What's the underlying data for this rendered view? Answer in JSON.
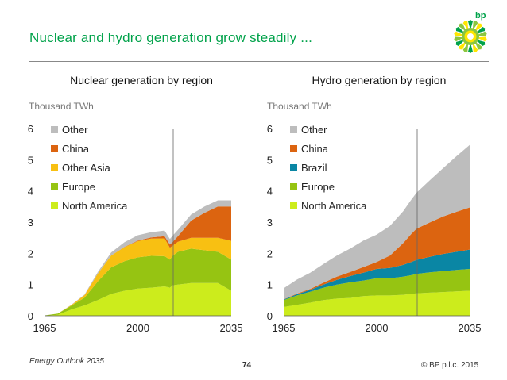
{
  "slide": {
    "title": "Nuclear and hydro generation grow steadily ...",
    "footer_left": "Energy Outlook 2035",
    "page_number": "74",
    "copyright": "© BP p.l.c. 2015",
    "logo_text": "bp"
  },
  "colors": {
    "title": "#00a24a",
    "North America": "#ccec1c",
    "Europe": "#96c412",
    "Other Asia": "#f8c012",
    "Brazil": "#0a86a4",
    "China": "#dc6410",
    "Other": "#bdbdbd"
  },
  "chart_data": [
    {
      "type": "area",
      "stacked": true,
      "title": "Nuclear generation by region",
      "ylabel": "Thousand TWh",
      "xlim": [
        1965,
        2035
      ],
      "ylim": [
        0,
        6
      ],
      "x_ticks": [
        1965,
        2000,
        2035
      ],
      "y_ticks": [
        0,
        1,
        2,
        3,
        4,
        5,
        6
      ],
      "projection_start": 2013,
      "legend_placement": "top-left",
      "legend": [
        "Other",
        "China",
        "Other Asia",
        "Europe",
        "North America"
      ],
      "x": [
        1965,
        1970,
        1975,
        1980,
        1985,
        1990,
        1995,
        2000,
        2005,
        2010,
        2012,
        2013,
        2015,
        2020,
        2025,
        2030,
        2035
      ],
      "series": [
        {
          "name": "North America",
          "values": [
            0.0,
            0.03,
            0.2,
            0.33,
            0.5,
            0.7,
            0.8,
            0.87,
            0.9,
            0.94,
            0.9,
            0.97,
            1.0,
            1.05,
            1.05,
            1.05,
            0.8
          ]
        },
        {
          "name": "Europe",
          "values": [
            0.01,
            0.04,
            0.12,
            0.25,
            0.6,
            0.85,
            0.95,
            1.0,
            1.02,
            0.97,
            0.9,
            0.95,
            1.05,
            1.1,
            1.05,
            1.0,
            1.0
          ]
        },
        {
          "name": "Other Asia",
          "values": [
            0.0,
            0.0,
            0.02,
            0.08,
            0.25,
            0.38,
            0.45,
            0.52,
            0.55,
            0.57,
            0.38,
            0.32,
            0.32,
            0.35,
            0.4,
            0.45,
            0.6
          ]
        },
        {
          "name": "China",
          "values": [
            0.0,
            0.0,
            0.0,
            0.0,
            0.0,
            0.0,
            0.01,
            0.02,
            0.04,
            0.07,
            0.1,
            0.12,
            0.18,
            0.55,
            0.8,
            1.0,
            1.1
          ]
        },
        {
          "name": "Other",
          "values": [
            0.0,
            0.0,
            0.01,
            0.02,
            0.05,
            0.1,
            0.15,
            0.17,
            0.17,
            0.18,
            0.18,
            0.2,
            0.2,
            0.2,
            0.2,
            0.2,
            0.2
          ]
        }
      ]
    },
    {
      "type": "area",
      "stacked": true,
      "title": "Hydro generation by region",
      "ylabel": "Thousand TWh",
      "xlim": [
        1965,
        2035
      ],
      "ylim": [
        0,
        6
      ],
      "x_ticks": [
        1965,
        2000,
        2035
      ],
      "y_ticks": [
        0,
        1,
        2,
        3,
        4,
        5,
        6
      ],
      "projection_start": 2013,
      "legend_placement": "top-left",
      "legend": [
        "Other",
        "China",
        "Brazil",
        "Europe",
        "North America"
      ],
      "x": [
        1965,
        1970,
        1975,
        1980,
        1985,
        1990,
        1995,
        2000,
        2005,
        2010,
        2013,
        2015,
        2020,
        2025,
        2030,
        2035
      ],
      "series": [
        {
          "name": "North America",
          "values": [
            0.28,
            0.35,
            0.42,
            0.5,
            0.55,
            0.57,
            0.63,
            0.65,
            0.65,
            0.67,
            0.7,
            0.72,
            0.74,
            0.76,
            0.78,
            0.8
          ]
        },
        {
          "name": "Europe",
          "values": [
            0.22,
            0.3,
            0.35,
            0.4,
            0.45,
            0.5,
            0.5,
            0.55,
            0.55,
            0.58,
            0.6,
            0.62,
            0.65,
            0.67,
            0.69,
            0.7
          ]
        },
        {
          "name": "Brazil",
          "values": [
            0.02,
            0.04,
            0.06,
            0.1,
            0.15,
            0.2,
            0.25,
            0.3,
            0.33,
            0.38,
            0.42,
            0.45,
            0.5,
            0.55,
            0.58,
            0.62
          ]
        },
        {
          "name": "China",
          "values": [
            0.01,
            0.02,
            0.03,
            0.06,
            0.1,
            0.13,
            0.18,
            0.22,
            0.4,
            0.7,
            0.9,
            1.0,
            1.1,
            1.2,
            1.28,
            1.35
          ]
        },
        {
          "name": "Other",
          "values": [
            0.35,
            0.45,
            0.52,
            0.6,
            0.68,
            0.75,
            0.85,
            0.88,
            0.95,
            1.02,
            1.1,
            1.15,
            1.35,
            1.55,
            1.78,
            2.0
          ]
        }
      ]
    }
  ]
}
